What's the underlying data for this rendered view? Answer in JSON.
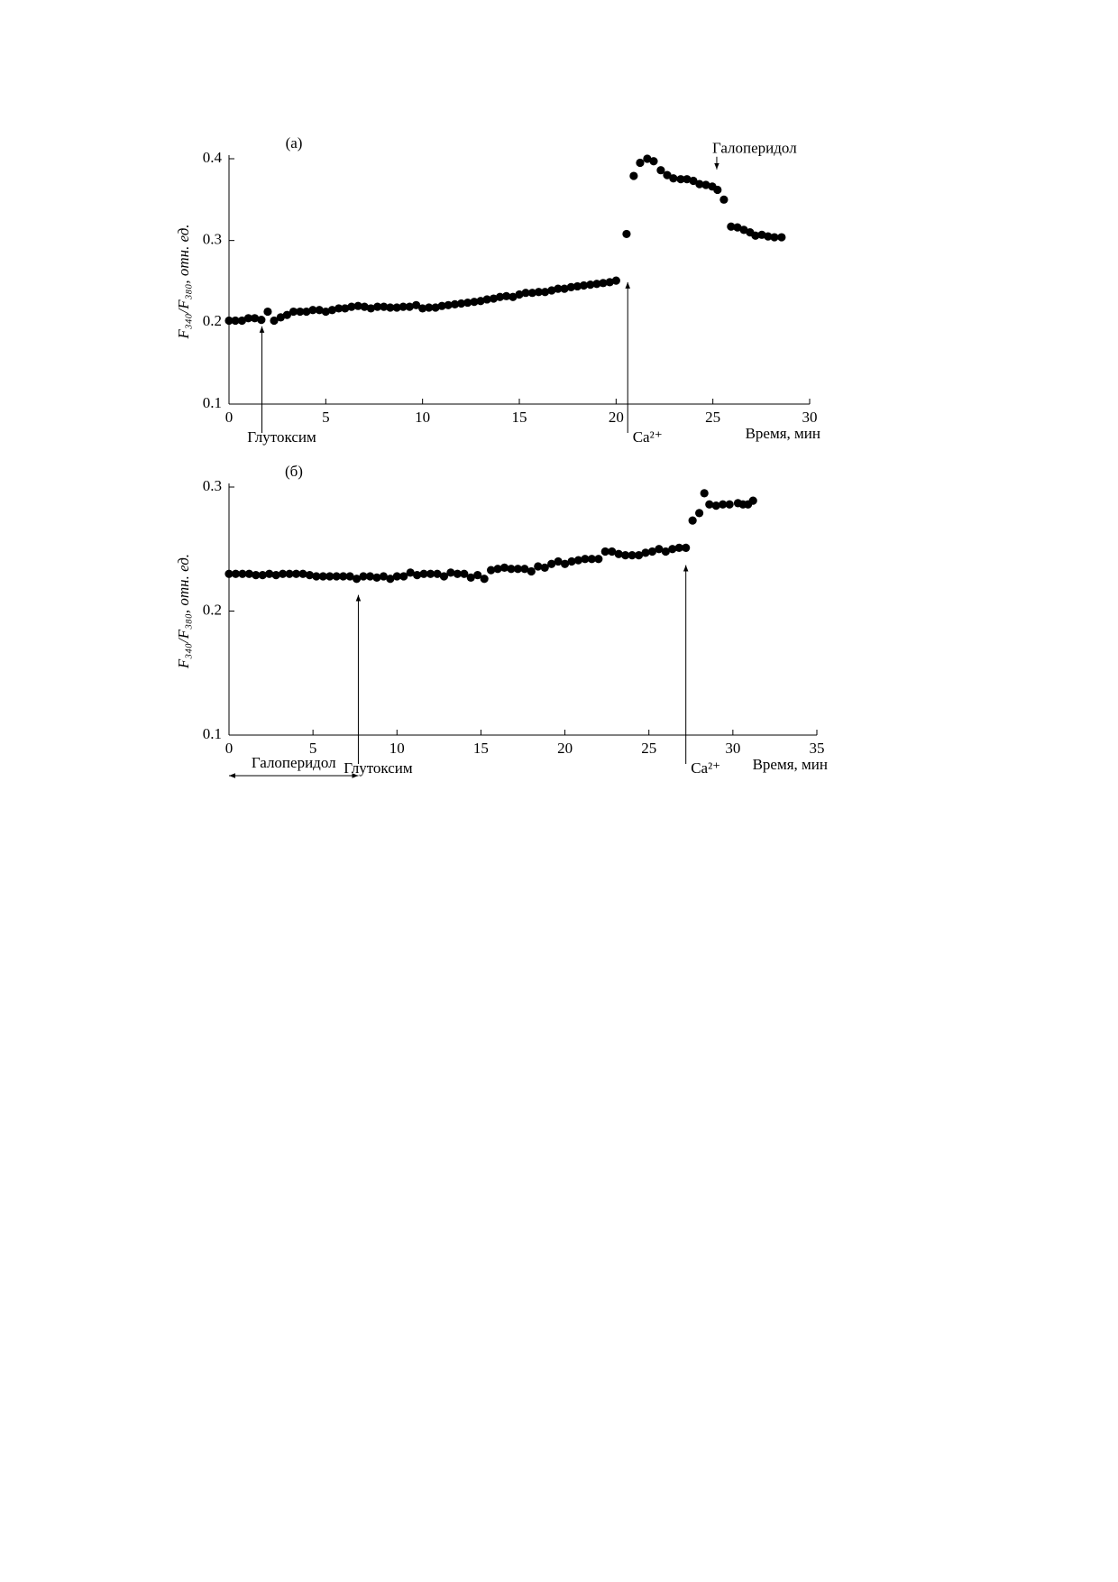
{
  "chart_data": [
    {
      "type": "scatter",
      "title": "(а)",
      "x_label": "Время, мин",
      "y_label": "F₃₄₀/F₃₈₀, отн. ед.",
      "xlim": [
        0,
        30
      ],
      "ylim": [
        0.1,
        0.4
      ],
      "xticks": [
        0,
        5,
        10,
        15,
        20,
        25,
        30
      ],
      "yticks": [
        0.1,
        0.2,
        0.3,
        0.4
      ],
      "series": [
        {
          "color": "#000000",
          "x": [
            0,
            0.33,
            0.67,
            1,
            1.33,
            1.67,
            2,
            2.33,
            2.67,
            3,
            3.33,
            3.67,
            4,
            4.33,
            4.67,
            5,
            5.33,
            5.67,
            6,
            6.33,
            6.67,
            7,
            7.33,
            7.67,
            8,
            8.33,
            8.67,
            9,
            9.33,
            9.67,
            10,
            10.33,
            10.67,
            11,
            11.33,
            11.67,
            12,
            12.33,
            12.67,
            13,
            13.33,
            13.67,
            14,
            14.33,
            14.67,
            15,
            15.33,
            15.67,
            16,
            16.33,
            16.67,
            17,
            17.33,
            17.67,
            18,
            18.33,
            18.67,
            19,
            19.33,
            19.67,
            20,
            20.54,
            20.91,
            21.24,
            21.61,
            21.94,
            22.31,
            22.64,
            22.96,
            23.34,
            23.66,
            23.99,
            24.31,
            24.64,
            24.97,
            25.24,
            25.57,
            25.94,
            26.27,
            26.6,
            26.92,
            27.2,
            27.53,
            27.85,
            28.18,
            28.55
          ],
          "values": [
            0.202,
            0.202,
            0.202,
            0.205,
            0.205,
            0.203,
            0.213,
            0.202,
            0.206,
            0.209,
            0.213,
            0.213,
            0.213,
            0.215,
            0.215,
            0.213,
            0.215,
            0.217,
            0.217,
            0.219,
            0.22,
            0.219,
            0.217,
            0.219,
            0.219,
            0.218,
            0.218,
            0.219,
            0.219,
            0.221,
            0.217,
            0.218,
            0.218,
            0.22,
            0.221,
            0.222,
            0.223,
            0.224,
            0.225,
            0.226,
            0.228,
            0.229,
            0.231,
            0.232,
            0.231,
            0.234,
            0.236,
            0.236,
            0.237,
            0.237,
            0.239,
            0.241,
            0.241,
            0.243,
            0.244,
            0.245,
            0.246,
            0.247,
            0.248,
            0.249,
            0.251,
            0.308,
            0.379,
            0.395,
            0.4,
            0.397,
            0.386,
            0.38,
            0.376,
            0.375,
            0.375,
            0.373,
            0.369,
            0.368,
            0.366,
            0.362,
            0.35,
            0.317,
            0.316,
            0.313,
            0.31,
            0.306,
            0.307,
            0.305,
            0.304,
            0.304
          ]
        }
      ],
      "annotations": [
        {
          "text": "Глутоксим",
          "x": 1.7,
          "y": 0.195,
          "arrow": "up"
        },
        {
          "text": "Ca²⁺",
          "x": 20.6,
          "y": 0.249,
          "arrow": "up"
        },
        {
          "text": "Галоперидол",
          "x": 25.2,
          "y": 0.387,
          "arrow": "down"
        }
      ]
    },
    {
      "type": "scatter",
      "title": "(б)",
      "x_label": "Время, мин",
      "y_label": "F₃₄₀/F₃₈₀, отн. ед.",
      "xlim": [
        0,
        35
      ],
      "ylim": [
        0.1,
        0.3
      ],
      "xticks": [
        0,
        5,
        10,
        15,
        20,
        25,
        30,
        35
      ],
      "yticks": [
        0.1,
        0.2,
        0.3
      ],
      "series": [
        {
          "color": "#000000",
          "x": [
            0,
            0.4,
            0.8,
            1.2,
            1.6,
            2,
            2.4,
            2.8,
            3.2,
            3.6,
            4,
            4.4,
            4.8,
            5.2,
            5.6,
            6,
            6.4,
            6.8,
            7.2,
            7.6,
            8,
            8.4,
            8.8,
            9.2,
            9.6,
            10,
            10.4,
            10.8,
            11.2,
            11.6,
            12,
            12.4,
            12.8,
            13.2,
            13.6,
            14,
            14.4,
            14.8,
            15.2,
            15.6,
            16,
            16.4,
            16.8,
            17.2,
            17.6,
            18,
            18.4,
            18.8,
            19.2,
            19.6,
            20,
            20.4,
            20.8,
            21.2,
            21.6,
            22,
            22.4,
            22.8,
            23.2,
            23.6,
            24,
            24.4,
            24.8,
            25.2,
            25.6,
            26,
            26.4,
            26.8,
            27.2,
            27.6,
            28,
            28.3,
            28.6,
            29,
            29.4,
            29.8,
            30.3,
            30.6,
            30.9,
            31.2
          ],
          "values": [
            0.23,
            0.23,
            0.23,
            0.23,
            0.229,
            0.229,
            0.23,
            0.229,
            0.23,
            0.23,
            0.23,
            0.23,
            0.229,
            0.228,
            0.228,
            0.228,
            0.228,
            0.228,
            0.228,
            0.226,
            0.228,
            0.228,
            0.227,
            0.228,
            0.226,
            0.228,
            0.228,
            0.231,
            0.229,
            0.23,
            0.23,
            0.23,
            0.228,
            0.231,
            0.23,
            0.23,
            0.227,
            0.229,
            0.226,
            0.233,
            0.234,
            0.235,
            0.234,
            0.234,
            0.234,
            0.232,
            0.236,
            0.235,
            0.238,
            0.24,
            0.238,
            0.24,
            0.241,
            0.242,
            0.242,
            0.242,
            0.248,
            0.248,
            0.246,
            0.245,
            0.245,
            0.245,
            0.247,
            0.248,
            0.25,
            0.248,
            0.25,
            0.251,
            0.251,
            0.273,
            0.279,
            0.295,
            0.286,
            0.285,
            0.286,
            0.286,
            0.287,
            0.286,
            0.286,
            0.289
          ]
        }
      ],
      "annotations": [
        {
          "text": "Галоперидол",
          "x": 0,
          "x2": 7.7,
          "arrow": "both"
        },
        {
          "text": "Глутоксим",
          "x": 7.7,
          "y": 0.213,
          "arrow": "up"
        },
        {
          "text": "Ca²⁺",
          "x": 27.2,
          "y": 0.237,
          "arrow": "up"
        }
      ]
    }
  ]
}
